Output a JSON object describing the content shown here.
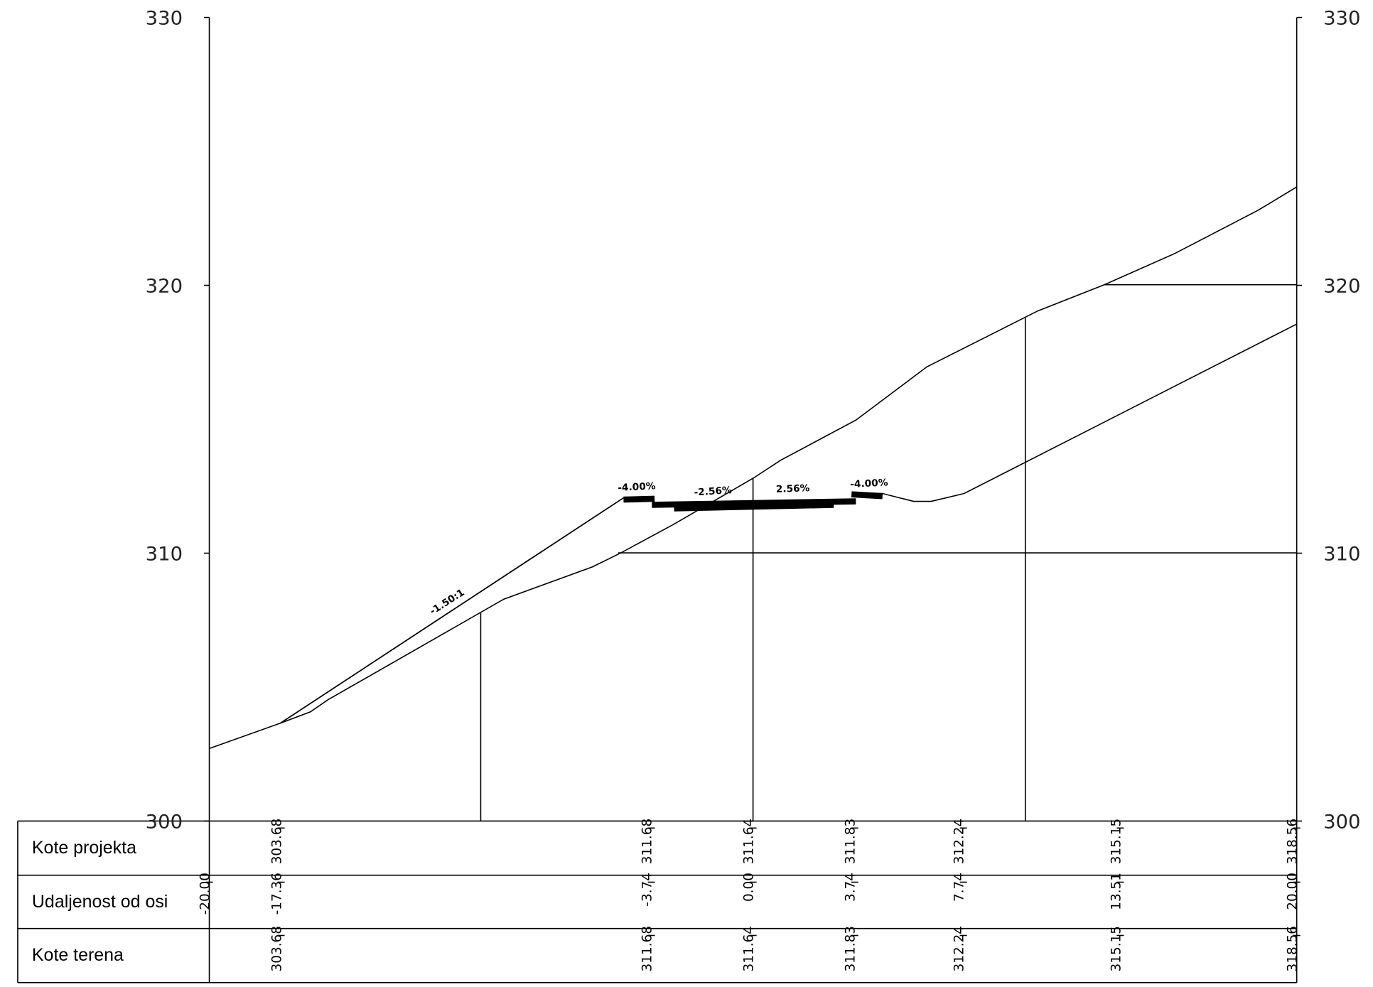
{
  "axis": {
    "left_ticks": [
      330,
      320,
      310,
      300
    ],
    "right_ticks": [
      330,
      320,
      310,
      300
    ]
  },
  "annotations": [
    "-4.00%",
    "-2.56%",
    "2.56%",
    "-4.00%",
    "-1.50:1"
  ],
  "table": {
    "row_labels": [
      "Kote projekta",
      "Udaljenost od osi",
      "Kote terena"
    ],
    "columns": [
      {
        "distance": "-20.00"
      },
      {
        "project": "303.68",
        "distance": "-17.36",
        "terrain": "303.68"
      },
      {
        "project": "311.68",
        "distance": "-3.74",
        "terrain": "311.68"
      },
      {
        "project": "311.64",
        "distance": "0.00",
        "terrain": "311.64"
      },
      {
        "project": "311.83",
        "distance": "3.74",
        "terrain": "311.83"
      },
      {
        "project": "312.24",
        "distance": "7.74",
        "terrain": "312.24"
      },
      {
        "project": "315.15",
        "distance": "13.51",
        "terrain": "315.15"
      },
      {
        "project": "318.56",
        "distance": "20.00",
        "terrain": "318.56"
      }
    ]
  }
}
